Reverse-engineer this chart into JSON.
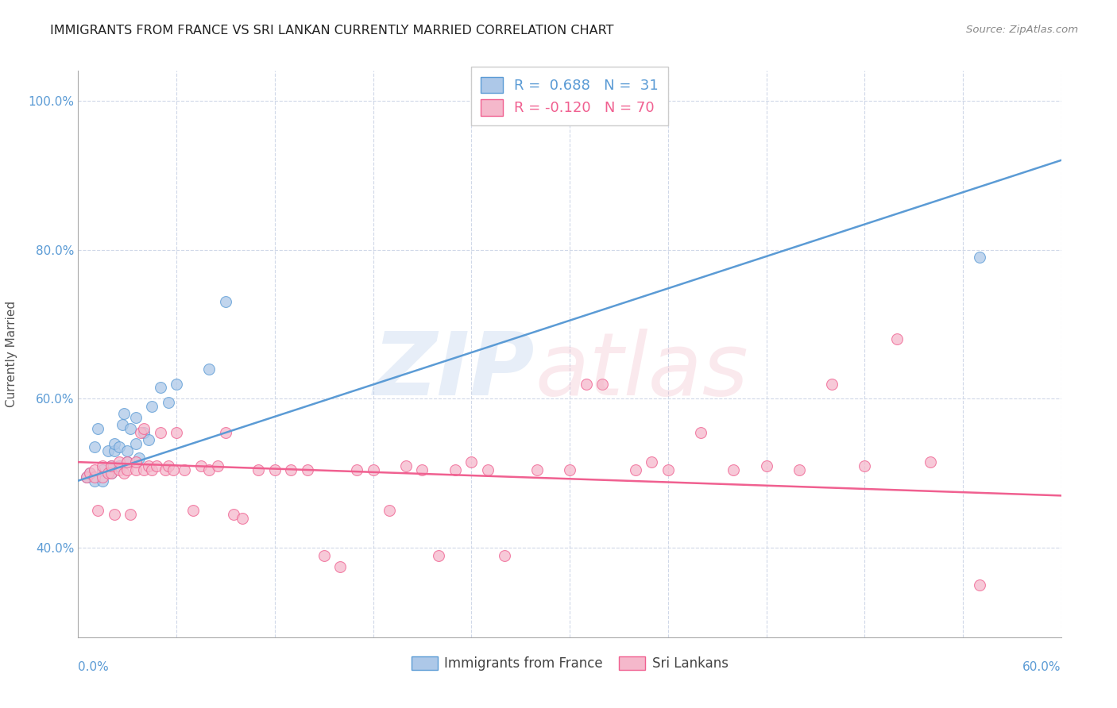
{
  "title": "IMMIGRANTS FROM FRANCE VS SRI LANKAN CURRENTLY MARRIED CORRELATION CHART",
  "source": "Source: ZipAtlas.com",
  "ylabel": "Currently Married",
  "xlim": [
    0.0,
    0.6
  ],
  "ylim": [
    0.28,
    1.04
  ],
  "ytick_positions": [
    0.4,
    0.6,
    0.8,
    1.0
  ],
  "ytick_labels": [
    "40.0%",
    "60.0%",
    "80.0%",
    "100.0%"
  ],
  "legend1_R": "0.688",
  "legend1_N": "31",
  "legend2_R": "-0.120",
  "legend2_N": "70",
  "france_color": "#adc8e8",
  "srilanka_color": "#f5b8cb",
  "france_line_color": "#5b9bd5",
  "srilanka_line_color": "#f06090",
  "france_scatter_x": [
    0.005,
    0.007,
    0.01,
    0.01,
    0.012,
    0.015,
    0.015,
    0.018,
    0.02,
    0.02,
    0.022,
    0.022,
    0.025,
    0.025,
    0.027,
    0.028,
    0.03,
    0.03,
    0.032,
    0.035,
    0.035,
    0.037,
    0.04,
    0.043,
    0.045,
    0.05,
    0.055,
    0.06,
    0.08,
    0.09,
    0.55
  ],
  "france_scatter_y": [
    0.495,
    0.5,
    0.49,
    0.535,
    0.56,
    0.49,
    0.505,
    0.53,
    0.5,
    0.51,
    0.53,
    0.54,
    0.51,
    0.535,
    0.565,
    0.58,
    0.515,
    0.53,
    0.56,
    0.54,
    0.575,
    0.52,
    0.555,
    0.545,
    0.59,
    0.615,
    0.595,
    0.62,
    0.64,
    0.73,
    0.79
  ],
  "france_line_x": [
    0.0,
    0.6
  ],
  "france_line_y": [
    0.49,
    0.92
  ],
  "srilanka_scatter_x": [
    0.005,
    0.007,
    0.01,
    0.01,
    0.012,
    0.015,
    0.015,
    0.018,
    0.02,
    0.02,
    0.022,
    0.025,
    0.025,
    0.028,
    0.03,
    0.03,
    0.032,
    0.035,
    0.035,
    0.038,
    0.04,
    0.04,
    0.043,
    0.045,
    0.048,
    0.05,
    0.053,
    0.055,
    0.058,
    0.06,
    0.065,
    0.07,
    0.075,
    0.08,
    0.085,
    0.09,
    0.095,
    0.1,
    0.11,
    0.12,
    0.13,
    0.14,
    0.15,
    0.16,
    0.17,
    0.18,
    0.19,
    0.2,
    0.21,
    0.22,
    0.23,
    0.24,
    0.25,
    0.26,
    0.28,
    0.3,
    0.31,
    0.32,
    0.34,
    0.35,
    0.36,
    0.38,
    0.4,
    0.42,
    0.44,
    0.46,
    0.48,
    0.5,
    0.52,
    0.55
  ],
  "srilanka_scatter_y": [
    0.495,
    0.5,
    0.495,
    0.505,
    0.45,
    0.495,
    0.51,
    0.5,
    0.5,
    0.51,
    0.445,
    0.505,
    0.515,
    0.5,
    0.505,
    0.515,
    0.445,
    0.505,
    0.515,
    0.555,
    0.505,
    0.56,
    0.51,
    0.505,
    0.51,
    0.555,
    0.505,
    0.51,
    0.505,
    0.555,
    0.505,
    0.45,
    0.51,
    0.505,
    0.51,
    0.555,
    0.445,
    0.44,
    0.505,
    0.505,
    0.505,
    0.505,
    0.39,
    0.375,
    0.505,
    0.505,
    0.45,
    0.51,
    0.505,
    0.39,
    0.505,
    0.515,
    0.505,
    0.39,
    0.505,
    0.505,
    0.62,
    0.62,
    0.505,
    0.515,
    0.505,
    0.555,
    0.505,
    0.51,
    0.505,
    0.62,
    0.51,
    0.68,
    0.515,
    0.35
  ],
  "srilanka_line_x": [
    0.0,
    0.6
  ],
  "srilanka_line_y": [
    0.515,
    0.47
  ]
}
